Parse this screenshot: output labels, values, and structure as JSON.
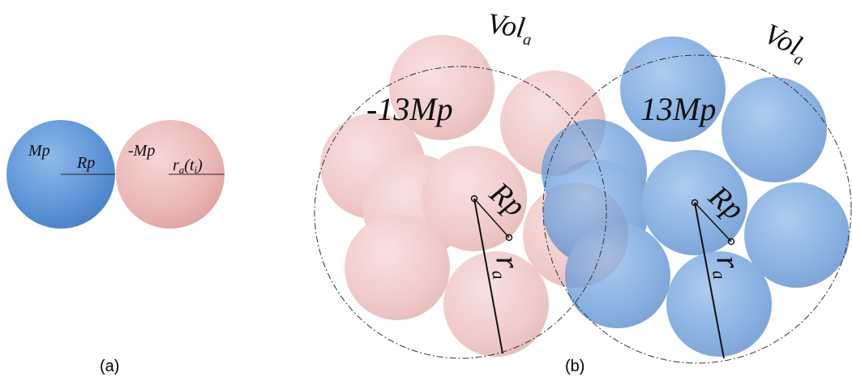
{
  "panel_a": {
    "left_sphere": {
      "mass": "Mp",
      "radius": "Rp"
    },
    "right_sphere": {
      "mass": "-Mp",
      "radius": {
        "main": "r",
        "sub": "a",
        "arg": "(t",
        "arg_sub": "i",
        "close": ")"
      }
    },
    "caption": "(a)"
  },
  "panel_b": {
    "left_cluster": {
      "volume": {
        "main": "Vol",
        "sub": "a"
      },
      "mass": "-13Mp",
      "particle_radius": "Rp",
      "radius": {
        "main": "r",
        "sub": "a"
      }
    },
    "right_cluster": {
      "volume": {
        "main": "Vol",
        "sub": "a"
      },
      "mass": "13Mp",
      "particle_radius": "Rp",
      "radius": {
        "main": "r",
        "sub": "a"
      }
    },
    "caption": "(b)"
  }
}
